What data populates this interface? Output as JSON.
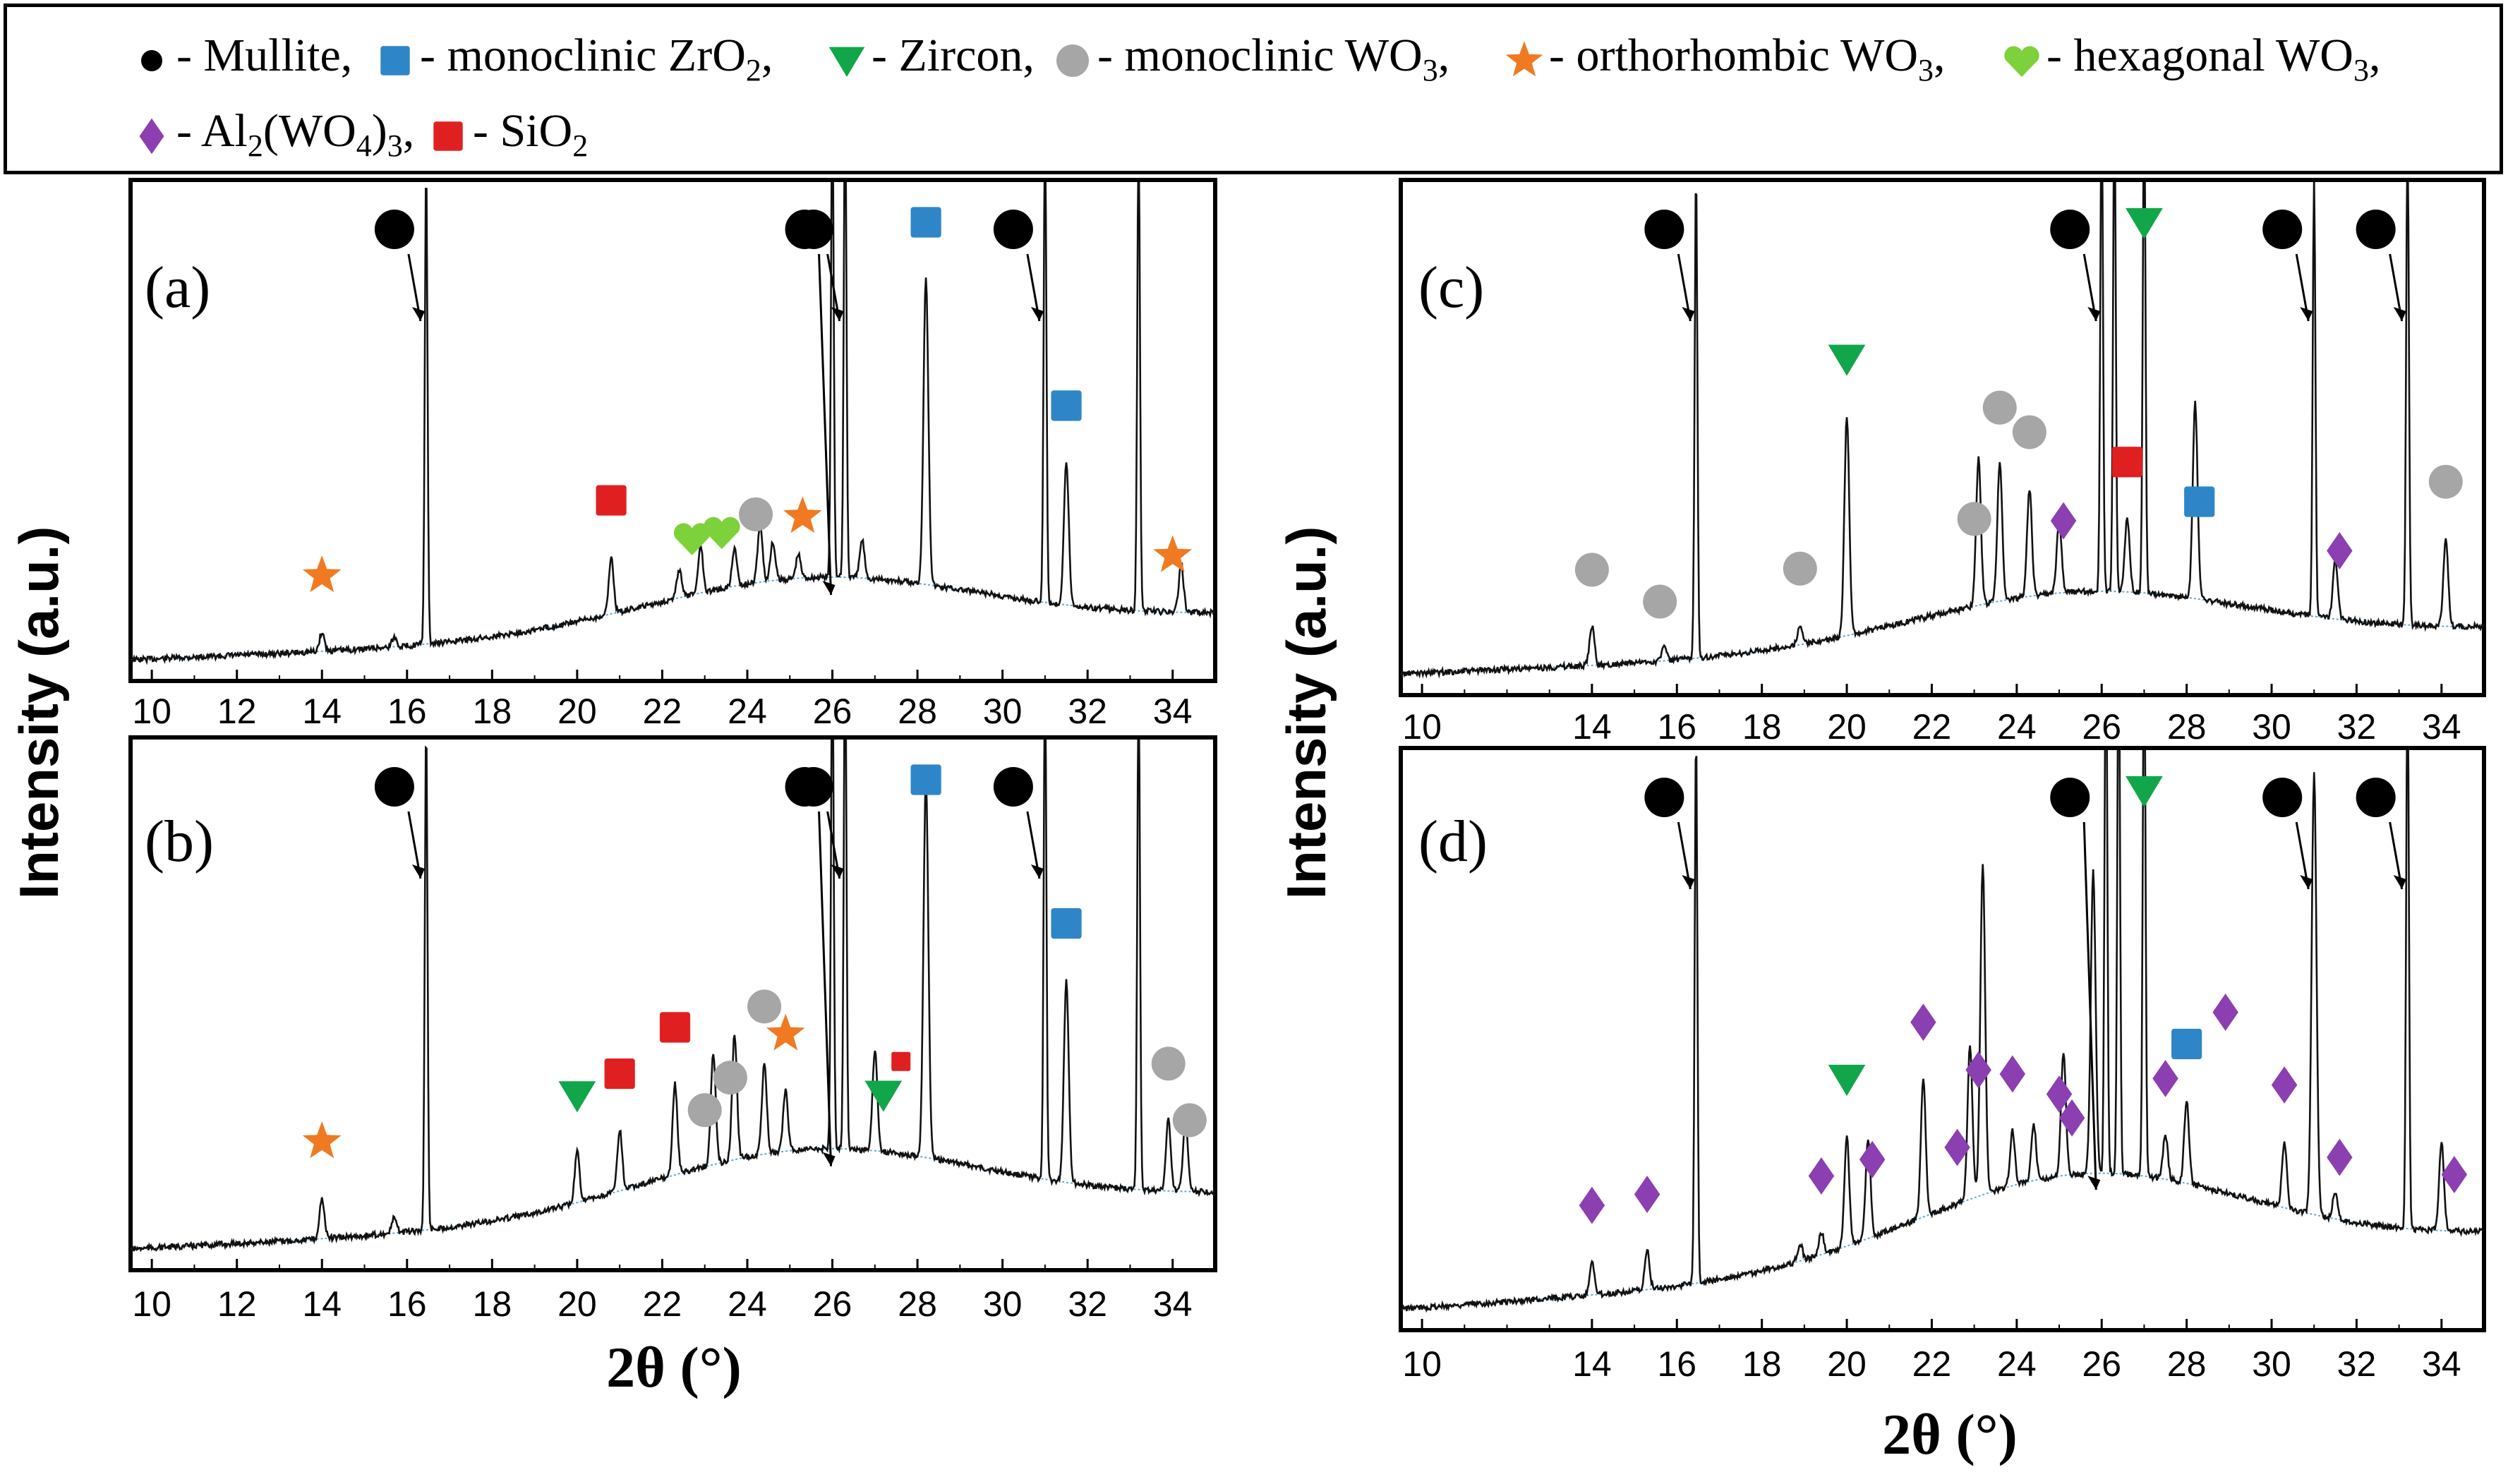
{
  "legend": {
    "items": [
      {
        "key": "mullite",
        "symbol": "circle",
        "color": "#000000",
        "label": "- Mullite,"
      },
      {
        "key": "zro2",
        "symbol": "square",
        "color": "#2e86c8",
        "label_pre": "- monoclinic ZrO",
        "sub": "2",
        "label_post": ","
      },
      {
        "key": "zircon",
        "symbol": "triangle",
        "color": "#12a64a",
        "label": "- Zircon,"
      },
      {
        "key": "mono_wo3",
        "symbol": "circle",
        "color": "#a6a6a6",
        "label_pre": "- monoclinic WO",
        "sub": "3",
        "label_post": ","
      },
      {
        "key": "ortho_wo3",
        "symbol": "star",
        "color": "#f07a22",
        "label_pre": "- orthorhombic WO",
        "sub": "3",
        "label_post": ","
      },
      {
        "key": "hex_wo3",
        "symbol": "heart",
        "color": "#7dd13b",
        "label_pre": "-  hexagonal WO",
        "sub": "3",
        "label_post": ","
      },
      {
        "key": "al2wo43",
        "symbol": "diamond",
        "color": "#8b3fb0",
        "label_pre": "- Al",
        "sub": "2",
        "label_mid": "(WO",
        "sub2": "4",
        "label_mid2": ")",
        "sub3": "3",
        "label_post": ","
      },
      {
        "key": "sio2",
        "symbol": "square",
        "color": "#e02020",
        "label_pre": "- SiO",
        "sub": "2",
        "label_post": ""
      }
    ]
  },
  "y_axis_label": "Intensity (a.u.)",
  "x_axis_label": "2θ (°)",
  "chart_data": [
    {
      "type": "line",
      "panel": "(a)",
      "xlim": [
        9.5,
        35
      ],
      "x_ticks": [
        10,
        12,
        14,
        16,
        18,
        20,
        22,
        24,
        26,
        28,
        30,
        32,
        34
      ],
      "peaks": [
        {
          "x": 14.0,
          "h": 0.04
        },
        {
          "x": 15.7,
          "h": 0.02
        },
        {
          "x": 16.45,
          "h": 1.0
        },
        {
          "x": 20.8,
          "h": 0.12
        },
        {
          "x": 22.4,
          "h": 0.06
        },
        {
          "x": 22.9,
          "h": 0.1
        },
        {
          "x": 23.7,
          "h": 0.08
        },
        {
          "x": 24.3,
          "h": 0.12
        },
        {
          "x": 24.6,
          "h": 0.08
        },
        {
          "x": 25.2,
          "h": 0.05
        },
        {
          "x": 26.0,
          "h": 1.0
        },
        {
          "x": 26.3,
          "h": 1.0
        },
        {
          "x": 26.7,
          "h": 0.08
        },
        {
          "x": 28.2,
          "h": 0.65
        },
        {
          "x": 31.0,
          "h": 1.0
        },
        {
          "x": 31.5,
          "h": 0.3
        },
        {
          "x": 33.2,
          "h": 1.0
        },
        {
          "x": 34.2,
          "h": 0.1
        }
      ],
      "markers": [
        {
          "phase": "mullite",
          "x": 16.45
        },
        {
          "phase": "mullite",
          "x": 26.1
        },
        {
          "phase": "mullite",
          "x": 26.3
        },
        {
          "phase": "mullite",
          "x": 31.0
        },
        {
          "phase": "zro2",
          "x": 28.2
        },
        {
          "phase": "zro2",
          "x": 31.5
        },
        {
          "phase": "ortho_wo3",
          "x": 14.0
        },
        {
          "phase": "ortho_wo3",
          "x": 25.3
        },
        {
          "phase": "ortho_wo3",
          "x": 34.0
        },
        {
          "phase": "sio2",
          "x": 20.8
        },
        {
          "phase": "hex_wo3",
          "x": 22.7
        },
        {
          "phase": "hex_wo3",
          "x": 23.4
        },
        {
          "phase": "mono_wo3",
          "x": 24.2
        }
      ]
    },
    {
      "type": "line",
      "panel": "(b)",
      "xlim": [
        9.5,
        35
      ],
      "x_ticks": [
        10,
        12,
        14,
        16,
        18,
        20,
        22,
        24,
        26,
        28,
        30,
        32,
        34
      ],
      "peaks": [
        {
          "x": 14.0,
          "h": 0.08
        },
        {
          "x": 15.7,
          "h": 0.03
        },
        {
          "x": 16.45,
          "h": 1.0
        },
        {
          "x": 20.0,
          "h": 0.1
        },
        {
          "x": 21.0,
          "h": 0.12
        },
        {
          "x": 22.3,
          "h": 0.18
        },
        {
          "x": 23.2,
          "h": 0.22
        },
        {
          "x": 23.7,
          "h": 0.25
        },
        {
          "x": 24.4,
          "h": 0.18
        },
        {
          "x": 24.9,
          "h": 0.12
        },
        {
          "x": 26.0,
          "h": 1.0
        },
        {
          "x": 26.3,
          "h": 1.0
        },
        {
          "x": 27.0,
          "h": 0.2
        },
        {
          "x": 28.2,
          "h": 0.75
        },
        {
          "x": 31.0,
          "h": 1.0
        },
        {
          "x": 31.5,
          "h": 0.4
        },
        {
          "x": 33.2,
          "h": 1.0
        },
        {
          "x": 33.9,
          "h": 0.14
        },
        {
          "x": 34.3,
          "h": 0.14
        }
      ],
      "markers": [
        {
          "phase": "mullite",
          "x": 16.45
        },
        {
          "phase": "mullite",
          "x": 26.1
        },
        {
          "phase": "mullite",
          "x": 26.3
        },
        {
          "phase": "mullite",
          "x": 31.0
        },
        {
          "phase": "zro2",
          "x": 28.2
        },
        {
          "phase": "zro2",
          "x": 31.5
        },
        {
          "phase": "ortho_wo3",
          "x": 14.0
        },
        {
          "phase": "ortho_wo3",
          "x": 24.9
        },
        {
          "phase": "zircon",
          "x": 20.0
        },
        {
          "phase": "zircon",
          "x": 27.2
        },
        {
          "phase": "sio2",
          "x": 21.0
        },
        {
          "phase": "sio2",
          "x": 22.3
        },
        {
          "phase": "sio2",
          "x": 26.7
        },
        {
          "phase": "mono_wo3",
          "x": 23.0
        },
        {
          "phase": "mono_wo3",
          "x": 23.6
        },
        {
          "phase": "mono_wo3",
          "x": 24.4
        },
        {
          "phase": "mono_wo3",
          "x": 33.9
        },
        {
          "phase": "mono_wo3",
          "x": 34.4
        }
      ]
    },
    {
      "type": "line",
      "panel": "(c)",
      "xlim": [
        9.5,
        35
      ],
      "x_ticks": [
        10,
        14,
        16,
        18,
        20,
        22,
        24,
        26,
        28,
        30,
        32,
        34
      ],
      "peaks": [
        {
          "x": 14.0,
          "h": 0.08
        },
        {
          "x": 15.7,
          "h": 0.03
        },
        {
          "x": 16.45,
          "h": 1.0
        },
        {
          "x": 18.9,
          "h": 0.04
        },
        {
          "x": 20.0,
          "h": 0.45
        },
        {
          "x": 23.1,
          "h": 0.3
        },
        {
          "x": 23.6,
          "h": 0.28
        },
        {
          "x": 24.3,
          "h": 0.22
        },
        {
          "x": 25.0,
          "h": 0.15
        },
        {
          "x": 26.0,
          "h": 1.0
        },
        {
          "x": 26.3,
          "h": 1.0
        },
        {
          "x": 26.6,
          "h": 0.15
        },
        {
          "x": 27.0,
          "h": 1.0
        },
        {
          "x": 28.2,
          "h": 0.4
        },
        {
          "x": 31.0,
          "h": 0.9
        },
        {
          "x": 31.5,
          "h": 0.12
        },
        {
          "x": 33.2,
          "h": 1.0
        },
        {
          "x": 34.1,
          "h": 0.18
        }
      ],
      "markers": [
        {
          "phase": "mullite",
          "x": 16.45
        },
        {
          "phase": "mullite",
          "x": 26.0
        },
        {
          "phase": "mullite",
          "x": 31.0
        },
        {
          "phase": "mullite",
          "x": 33.2
        },
        {
          "phase": "zircon",
          "x": 20.0
        },
        {
          "phase": "zircon",
          "x": 27.0
        },
        {
          "phase": "zro2",
          "x": 28.3
        },
        {
          "phase": "sio2",
          "x": 26.6
        },
        {
          "phase": "mono_wo3",
          "x": 14.0
        },
        {
          "phase": "mono_wo3",
          "x": 15.6
        },
        {
          "phase": "mono_wo3",
          "x": 18.9
        },
        {
          "phase": "mono_wo3",
          "x": 23.0
        },
        {
          "phase": "mono_wo3",
          "x": 23.6
        },
        {
          "phase": "mono_wo3",
          "x": 24.3
        },
        {
          "phase": "mono_wo3",
          "x": 34.1
        },
        {
          "phase": "al2wo43",
          "x": 25.1
        },
        {
          "phase": "al2wo43",
          "x": 31.6
        }
      ]
    },
    {
      "type": "line",
      "panel": "(d)",
      "xlim": [
        9.5,
        35
      ],
      "x_ticks": [
        10,
        14,
        16,
        18,
        20,
        22,
        24,
        26,
        28,
        30,
        32,
        34
      ],
      "peaks": [
        {
          "x": 14.0,
          "h": 0.06
        },
        {
          "x": 15.3,
          "h": 0.07
        },
        {
          "x": 16.45,
          "h": 1.0
        },
        {
          "x": 18.9,
          "h": 0.03
        },
        {
          "x": 19.4,
          "h": 0.04
        },
        {
          "x": 20.0,
          "h": 0.2
        },
        {
          "x": 20.5,
          "h": 0.18
        },
        {
          "x": 21.8,
          "h": 0.25
        },
        {
          "x": 22.9,
          "h": 0.28
        },
        {
          "x": 23.2,
          "h": 0.6
        },
        {
          "x": 23.9,
          "h": 0.1
        },
        {
          "x": 24.4,
          "h": 0.1
        },
        {
          "x": 25.1,
          "h": 0.22
        },
        {
          "x": 25.8,
          "h": 0.55
        },
        {
          "x": 26.1,
          "h": 1.0
        },
        {
          "x": 26.4,
          "h": 1.0
        },
        {
          "x": 27.0,
          "h": 1.0
        },
        {
          "x": 27.5,
          "h": 0.08
        },
        {
          "x": 28.0,
          "h": 0.15
        },
        {
          "x": 30.3,
          "h": 0.12
        },
        {
          "x": 31.0,
          "h": 0.8
        },
        {
          "x": 31.5,
          "h": 0.05
        },
        {
          "x": 33.2,
          "h": 1.0
        },
        {
          "x": 34.0,
          "h": 0.16
        }
      ],
      "markers": [
        {
          "phase": "mullite",
          "x": 16.45
        },
        {
          "phase": "mullite",
          "x": 26.0
        },
        {
          "phase": "mullite",
          "x": 31.0
        },
        {
          "phase": "mullite",
          "x": 33.2
        },
        {
          "phase": "zircon",
          "x": 20.0
        },
        {
          "phase": "zircon",
          "x": 27.0
        },
        {
          "phase": "zro2",
          "x": 28.0
        },
        {
          "phase": "al2wo43",
          "x": 14.0
        },
        {
          "phase": "al2wo43",
          "x": 15.3
        },
        {
          "phase": "al2wo43",
          "x": 19.4
        },
        {
          "phase": "al2wo43",
          "x": 20.6
        },
        {
          "phase": "al2wo43",
          "x": 21.8
        },
        {
          "phase": "al2wo43",
          "x": 22.6
        },
        {
          "phase": "al2wo43",
          "x": 23.1
        },
        {
          "phase": "al2wo43",
          "x": 23.9
        },
        {
          "phase": "al2wo43",
          "x": 25.0
        },
        {
          "phase": "al2wo43",
          "x": 25.3
        },
        {
          "phase": "al2wo43",
          "x": 27.5
        },
        {
          "phase": "al2wo43",
          "x": 28.0
        },
        {
          "phase": "al2wo43",
          "x": 30.3
        },
        {
          "phase": "al2wo43",
          "x": 31.6
        },
        {
          "phase": "al2wo43",
          "x": 34.3
        }
      ]
    }
  ]
}
